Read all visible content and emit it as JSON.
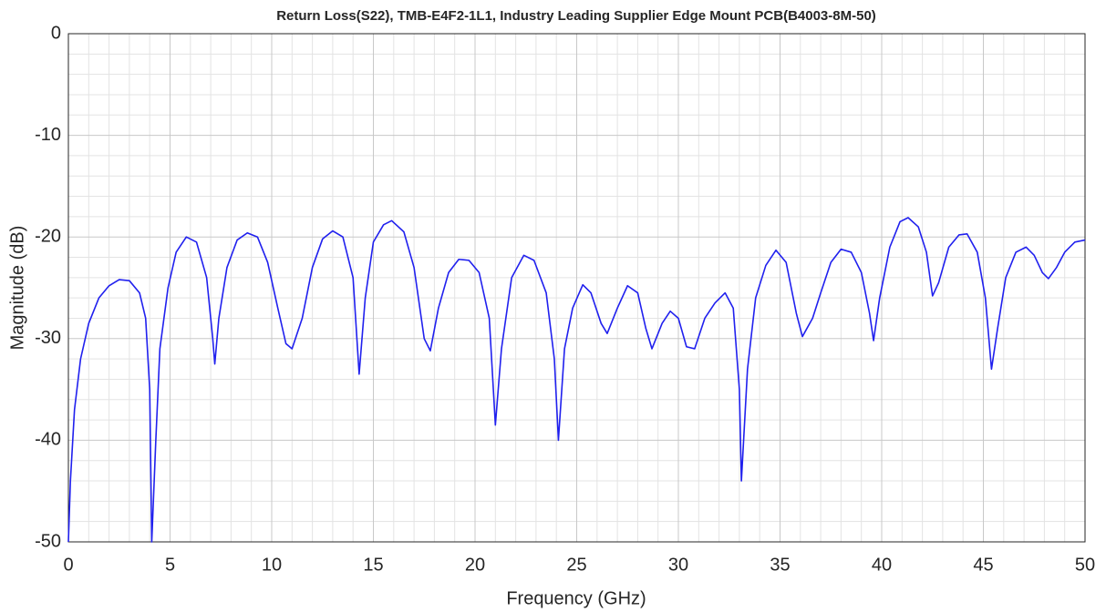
{
  "chart_data": {
    "type": "line",
    "title": "Return Loss(S22), TMB-E4F2-1L1, Industry Leading Supplier Edge Mount PCB(B4003-8M-50)",
    "x_label": "Frequency (GHz)",
    "y_label": "Magnitude (dB)",
    "xlim": [
      0,
      50
    ],
    "ylim": [
      -50,
      0
    ],
    "xticks": [
      0,
      5,
      10,
      15,
      20,
      25,
      30,
      35,
      40,
      45,
      50
    ],
    "yticks": [
      -50,
      -40,
      -30,
      -20,
      -10,
      0
    ],
    "grid": true,
    "series": [
      {
        "name": "S22",
        "color": "#2020ee",
        "x": [
          0.0,
          0.1,
          0.3,
          0.6,
          1.0,
          1.5,
          2.0,
          2.5,
          3.0,
          3.5,
          3.8,
          4.0,
          4.1,
          4.3,
          4.5,
          4.9,
          5.3,
          5.8,
          6.3,
          6.8,
          7.1,
          7.2,
          7.4,
          7.8,
          8.3,
          8.8,
          9.3,
          9.8,
          10.3,
          10.7,
          11.0,
          11.5,
          12.0,
          12.5,
          13.0,
          13.5,
          14.0,
          14.3,
          14.6,
          15.0,
          15.5,
          15.9,
          16.5,
          17.0,
          17.5,
          17.8,
          18.2,
          18.7,
          19.2,
          19.7,
          20.2,
          20.7,
          21.0,
          21.3,
          21.8,
          22.4,
          22.9,
          23.5,
          23.9,
          24.1,
          24.4,
          24.8,
          25.3,
          25.7,
          26.2,
          26.5,
          27.0,
          27.5,
          28.0,
          28.4,
          28.7,
          29.2,
          29.6,
          30.0,
          30.4,
          30.8,
          31.3,
          31.8,
          32.3,
          32.7,
          33.0,
          33.1,
          33.4,
          33.8,
          34.3,
          34.8,
          35.3,
          35.8,
          36.1,
          36.6,
          37.0,
          37.5,
          38.0,
          38.5,
          39.0,
          39.4,
          39.6,
          39.9,
          40.4,
          40.9,
          41.3,
          41.8,
          42.2,
          42.5,
          42.8,
          43.3,
          43.8,
          44.2,
          44.7,
          45.1,
          45.4,
          45.7,
          46.1,
          46.6,
          47.1,
          47.5,
          47.9,
          48.2,
          48.6,
          49.0,
          49.5,
          50.0
        ],
        "values": [
          -50,
          -44,
          -37,
          -32,
          -28.5,
          -26,
          -24.8,
          -24.2,
          -24.3,
          -25.5,
          -28,
          -35,
          -50,
          -40,
          -31,
          -25,
          -21.5,
          -20,
          -20.5,
          -24,
          -30,
          -32.5,
          -28,
          -23,
          -20.3,
          -19.6,
          -20,
          -22.5,
          -27,
          -30.5,
          -31,
          -28,
          -23,
          -20.2,
          -19.4,
          -20,
          -24,
          -33.5,
          -26,
          -20.5,
          -18.8,
          -18.4,
          -19.5,
          -23,
          -30,
          -31.2,
          -27,
          -23.5,
          -22.2,
          -22.3,
          -23.5,
          -28,
          -38.5,
          -31,
          -24,
          -21.8,
          -22.3,
          -25.5,
          -32,
          -40,
          -31,
          -27,
          -24.7,
          -25.5,
          -28.5,
          -29.5,
          -27,
          -24.8,
          -25.5,
          -29,
          -31,
          -28.5,
          -27.3,
          -28,
          -30.8,
          -31,
          -28,
          -26.5,
          -25.5,
          -27,
          -35,
          -44,
          -33,
          -26,
          -22.8,
          -21.3,
          -22.5,
          -27.5,
          -29.8,
          -28,
          -25.5,
          -22.5,
          -21.2,
          -21.5,
          -23.5,
          -27.5,
          -30.2,
          -26,
          -21,
          -18.5,
          -18.1,
          -19,
          -21.5,
          -25.8,
          -24.5,
          -21,
          -19.8,
          -19.7,
          -21.5,
          -26,
          -33,
          -29,
          -24,
          -21.5,
          -21,
          -21.8,
          -23.5,
          -24.1,
          -23,
          -21.5,
          -20.5,
          -20.3
        ]
      }
    ]
  }
}
